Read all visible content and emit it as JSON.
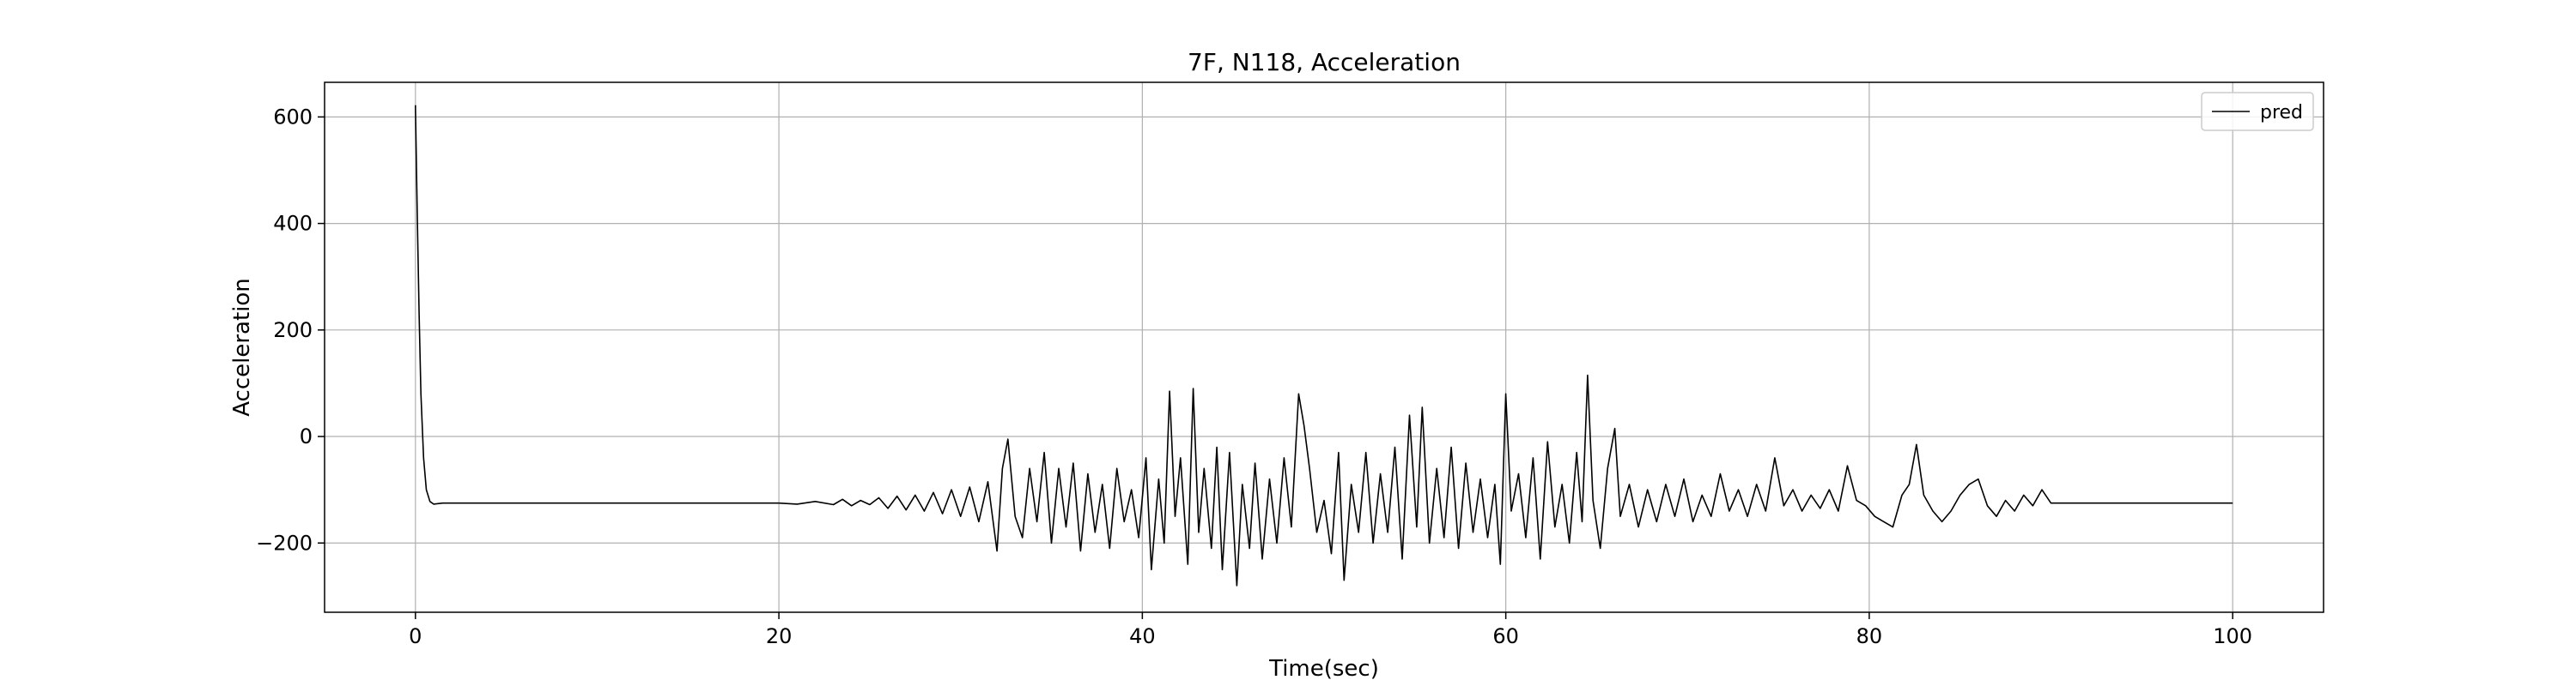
{
  "chart_data": {
    "type": "line",
    "title": "7F, N118, Acceleration",
    "xlabel": "Time(sec)",
    "ylabel": "Acceleration",
    "xlim": [
      -5,
      105
    ],
    "ylim": [
      -330,
      665
    ],
    "xticks": [
      0,
      20,
      40,
      60,
      80,
      100
    ],
    "yticks": [
      -200,
      0,
      200,
      400,
      600
    ],
    "ytick_labels": [
      "−200",
      "0",
      "200",
      "400",
      "600"
    ],
    "grid": true,
    "legend": {
      "position": "top-right",
      "entries": [
        "pred"
      ]
    },
    "series": [
      {
        "name": "pred",
        "color": "#000000",
        "points": [
          [
            0,
            622
          ],
          [
            0.1,
            420
          ],
          [
            0.2,
            230
          ],
          [
            0.3,
            80
          ],
          [
            0.45,
            -40
          ],
          [
            0.6,
            -100
          ],
          [
            0.8,
            -122
          ],
          [
            1.0,
            -127
          ],
          [
            1.5,
            -125
          ],
          [
            5,
            -125
          ],
          [
            10,
            -125
          ],
          [
            15,
            -125
          ],
          [
            20,
            -125
          ],
          [
            21,
            -127
          ],
          [
            22,
            -122
          ],
          [
            23,
            -128
          ],
          [
            23.5,
            -118
          ],
          [
            24,
            -130
          ],
          [
            24.5,
            -120
          ],
          [
            25,
            -128
          ],
          [
            25.5,
            -115
          ],
          [
            26,
            -135
          ],
          [
            26.5,
            -112
          ],
          [
            27,
            -138
          ],
          [
            27.5,
            -110
          ],
          [
            28,
            -140
          ],
          [
            28.5,
            -105
          ],
          [
            29,
            -145
          ],
          [
            29.5,
            -100
          ],
          [
            30,
            -150
          ],
          [
            30.5,
            -95
          ],
          [
            31,
            -160
          ],
          [
            31.5,
            -85
          ],
          [
            32,
            -215
          ],
          [
            32.3,
            -60
          ],
          [
            32.6,
            -5
          ],
          [
            33,
            -150
          ],
          [
            33.4,
            -190
          ],
          [
            33.8,
            -60
          ],
          [
            34.2,
            -160
          ],
          [
            34.6,
            -30
          ],
          [
            35,
            -200
          ],
          [
            35.4,
            -60
          ],
          [
            35.8,
            -170
          ],
          [
            36.2,
            -50
          ],
          [
            36.6,
            -215
          ],
          [
            37,
            -70
          ],
          [
            37.4,
            -180
          ],
          [
            37.8,
            -90
          ],
          [
            38.2,
            -210
          ],
          [
            38.6,
            -60
          ],
          [
            39,
            -160
          ],
          [
            39.4,
            -100
          ],
          [
            39.8,
            -190
          ],
          [
            40.2,
            -40
          ],
          [
            40.5,
            -250
          ],
          [
            40.9,
            -80
          ],
          [
            41.2,
            -200
          ],
          [
            41.5,
            85
          ],
          [
            41.8,
            -150
          ],
          [
            42.1,
            -40
          ],
          [
            42.5,
            -240
          ],
          [
            42.8,
            90
          ],
          [
            43.1,
            -180
          ],
          [
            43.4,
            -60
          ],
          [
            43.8,
            -210
          ],
          [
            44.1,
            -20
          ],
          [
            44.4,
            -250
          ],
          [
            44.8,
            -30
          ],
          [
            45.2,
            -280
          ],
          [
            45.5,
            -90
          ],
          [
            45.9,
            -210
          ],
          [
            46.2,
            -50
          ],
          [
            46.6,
            -230
          ],
          [
            47,
            -80
          ],
          [
            47.4,
            -200
          ],
          [
            47.8,
            -40
          ],
          [
            48.2,
            -170
          ],
          [
            48.6,
            80
          ],
          [
            48.9,
            20
          ],
          [
            49.2,
            -60
          ],
          [
            49.6,
            -180
          ],
          [
            50,
            -120
          ],
          [
            50.4,
            -220
          ],
          [
            50.8,
            -30
          ],
          [
            51.1,
            -270
          ],
          [
            51.5,
            -90
          ],
          [
            51.9,
            -180
          ],
          [
            52.3,
            -30
          ],
          [
            52.7,
            -200
          ],
          [
            53.1,
            -70
          ],
          [
            53.5,
            -180
          ],
          [
            53.9,
            -20
          ],
          [
            54.3,
            -230
          ],
          [
            54.7,
            40
          ],
          [
            55.1,
            -170
          ],
          [
            55.4,
            55
          ],
          [
            55.8,
            -200
          ],
          [
            56.2,
            -60
          ],
          [
            56.6,
            -190
          ],
          [
            57,
            -20
          ],
          [
            57.4,
            -210
          ],
          [
            57.8,
            -50
          ],
          [
            58.2,
            -180
          ],
          [
            58.6,
            -80
          ],
          [
            59,
            -190
          ],
          [
            59.4,
            -90
          ],
          [
            59.7,
            -240
          ],
          [
            60,
            80
          ],
          [
            60.3,
            -140
          ],
          [
            60.7,
            -70
          ],
          [
            61.1,
            -190
          ],
          [
            61.5,
            -40
          ],
          [
            61.9,
            -230
          ],
          [
            62.3,
            -10
          ],
          [
            62.7,
            -170
          ],
          [
            63.1,
            -90
          ],
          [
            63.5,
            -200
          ],
          [
            63.9,
            -30
          ],
          [
            64.2,
            -160
          ],
          [
            64.5,
            115
          ],
          [
            64.8,
            -120
          ],
          [
            65.2,
            -210
          ],
          [
            65.6,
            -60
          ],
          [
            66,
            15
          ],
          [
            66.3,
            -150
          ],
          [
            66.8,
            -90
          ],
          [
            67.3,
            -170
          ],
          [
            67.8,
            -100
          ],
          [
            68.3,
            -160
          ],
          [
            68.8,
            -90
          ],
          [
            69.3,
            -150
          ],
          [
            69.8,
            -80
          ],
          [
            70.3,
            -160
          ],
          [
            70.8,
            -110
          ],
          [
            71.3,
            -150
          ],
          [
            71.8,
            -70
          ],
          [
            72.3,
            -140
          ],
          [
            72.8,
            -100
          ],
          [
            73.3,
            -150
          ],
          [
            73.8,
            -90
          ],
          [
            74.3,
            -140
          ],
          [
            74.8,
            -40
          ],
          [
            75.3,
            -130
          ],
          [
            75.8,
            -100
          ],
          [
            76.3,
            -140
          ],
          [
            76.8,
            -110
          ],
          [
            77.3,
            -135
          ],
          [
            77.8,
            -100
          ],
          [
            78.3,
            -140
          ],
          [
            78.8,
            -55
          ],
          [
            79.3,
            -120
          ],
          [
            79.8,
            -130
          ],
          [
            80.3,
            -150
          ],
          [
            80.8,
            -160
          ],
          [
            81.3,
            -170
          ],
          [
            81.8,
            -110
          ],
          [
            82.2,
            -90
          ],
          [
            82.6,
            -15
          ],
          [
            83,
            -110
          ],
          [
            83.5,
            -140
          ],
          [
            84,
            -160
          ],
          [
            84.5,
            -140
          ],
          [
            85,
            -110
          ],
          [
            85.5,
            -90
          ],
          [
            86,
            -80
          ],
          [
            86.5,
            -130
          ],
          [
            87,
            -150
          ],
          [
            87.5,
            -120
          ],
          [
            88,
            -140
          ],
          [
            88.5,
            -110
          ],
          [
            89,
            -130
          ],
          [
            89.5,
            -100
          ],
          [
            90,
            -125
          ],
          [
            92,
            -125
          ],
          [
            95,
            -125
          ],
          [
            98,
            -125
          ],
          [
            100,
            -125
          ]
        ]
      }
    ]
  }
}
